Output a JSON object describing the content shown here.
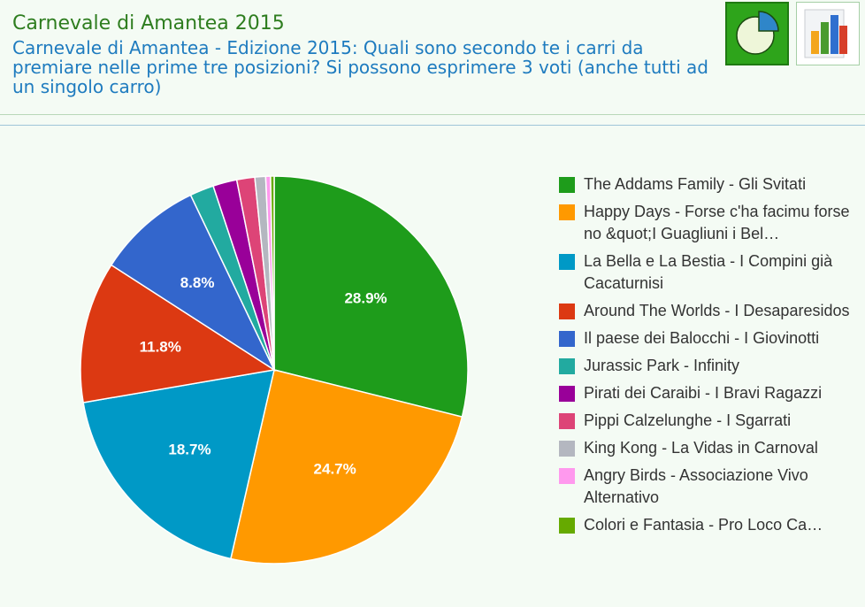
{
  "header": {
    "title": "Carnevale di Amantea 2015",
    "subtitle": "Carnevale di Amantea - Edizione 2015: Quali sono secondo te i carri da premiare nelle prime tre posizioni? Si possono esprimere 3 voti (anche tutti ad un singolo carro)"
  },
  "toolbar": {
    "pie_icon": "pie-chart-icon",
    "bar_icon": "bar-chart-icon"
  },
  "chart_data": {
    "type": "pie",
    "title": "Carnevale di Amantea 2015",
    "legend_position": "right",
    "slices": [
      {
        "label": "The Addams Family - Gli Svitati",
        "legend_text": "The Addams Family - Gli Svitati",
        "value": 28.9,
        "display": "28.9%",
        "color": "#1e9c1b"
      },
      {
        "label": "Happy Days - Forse c'ha facimu forse no &quot;I Guagliuni i Bel…",
        "legend_text": "Happy Days - Forse c'ha facimu forse no &quot;I Guagliuni i Bel…",
        "value": 24.7,
        "display": "24.7%",
        "color": "#ff9900"
      },
      {
        "label": "La Bella e La Bestia - I Compini già Cacaturnisi",
        "legend_text": "La Bella e La Bestia - I Compini già Cacaturnisi",
        "value": 18.7,
        "display": "18.7%",
        "color": "#0099c6"
      },
      {
        "label": "Around The Worlds - I Desaparesidos",
        "legend_text": "Around The Worlds - I Desaparesidos",
        "value": 11.8,
        "display": "11.8%",
        "color": "#dc3912"
      },
      {
        "label": "Il paese dei Balocchi - I Giovinotti",
        "legend_text": "Il paese dei Balocchi - I Giovinotti",
        "value": 8.8,
        "display": "8.8%",
        "color": "#3366cc"
      },
      {
        "label": "Jurassic Park - Infinity",
        "legend_text": "Jurassic Park - Infinity",
        "value": 2.0,
        "display": "",
        "color": "#22aaa0"
      },
      {
        "label": "Pirati dei Caraibi - I Bravi Ragazzi",
        "legend_text": "Pirati dei Caraibi - I Bravi Ragazzi",
        "value": 2.0,
        "display": "",
        "color": "#990099"
      },
      {
        "label": "Pippi Calzelunghe - I Sgarrati",
        "legend_text": "Pippi Calzelunghe - I Sgarrati",
        "value": 1.5,
        "display": "",
        "color": "#dd4477"
      },
      {
        "label": "King Kong - La Vidas in Carnoval",
        "legend_text": "King Kong - La Vidas in Carnoval",
        "value": 0.9,
        "display": "",
        "color": "#b4b7c0"
      },
      {
        "label": "Angry Birds - Associazione Vivo Alternativo",
        "legend_text": "Angry Birds - Associazione Vivo Alternativo",
        "value": 0.4,
        "display": "",
        "color": "#ff99ee"
      },
      {
        "label": "Colori e Fantasia - Pro Loco Campora",
        "legend_text": "Colori e Fantasia - Pro Loco Ca…",
        "value": 0.3,
        "display": "",
        "color": "#66aa00"
      }
    ]
  }
}
